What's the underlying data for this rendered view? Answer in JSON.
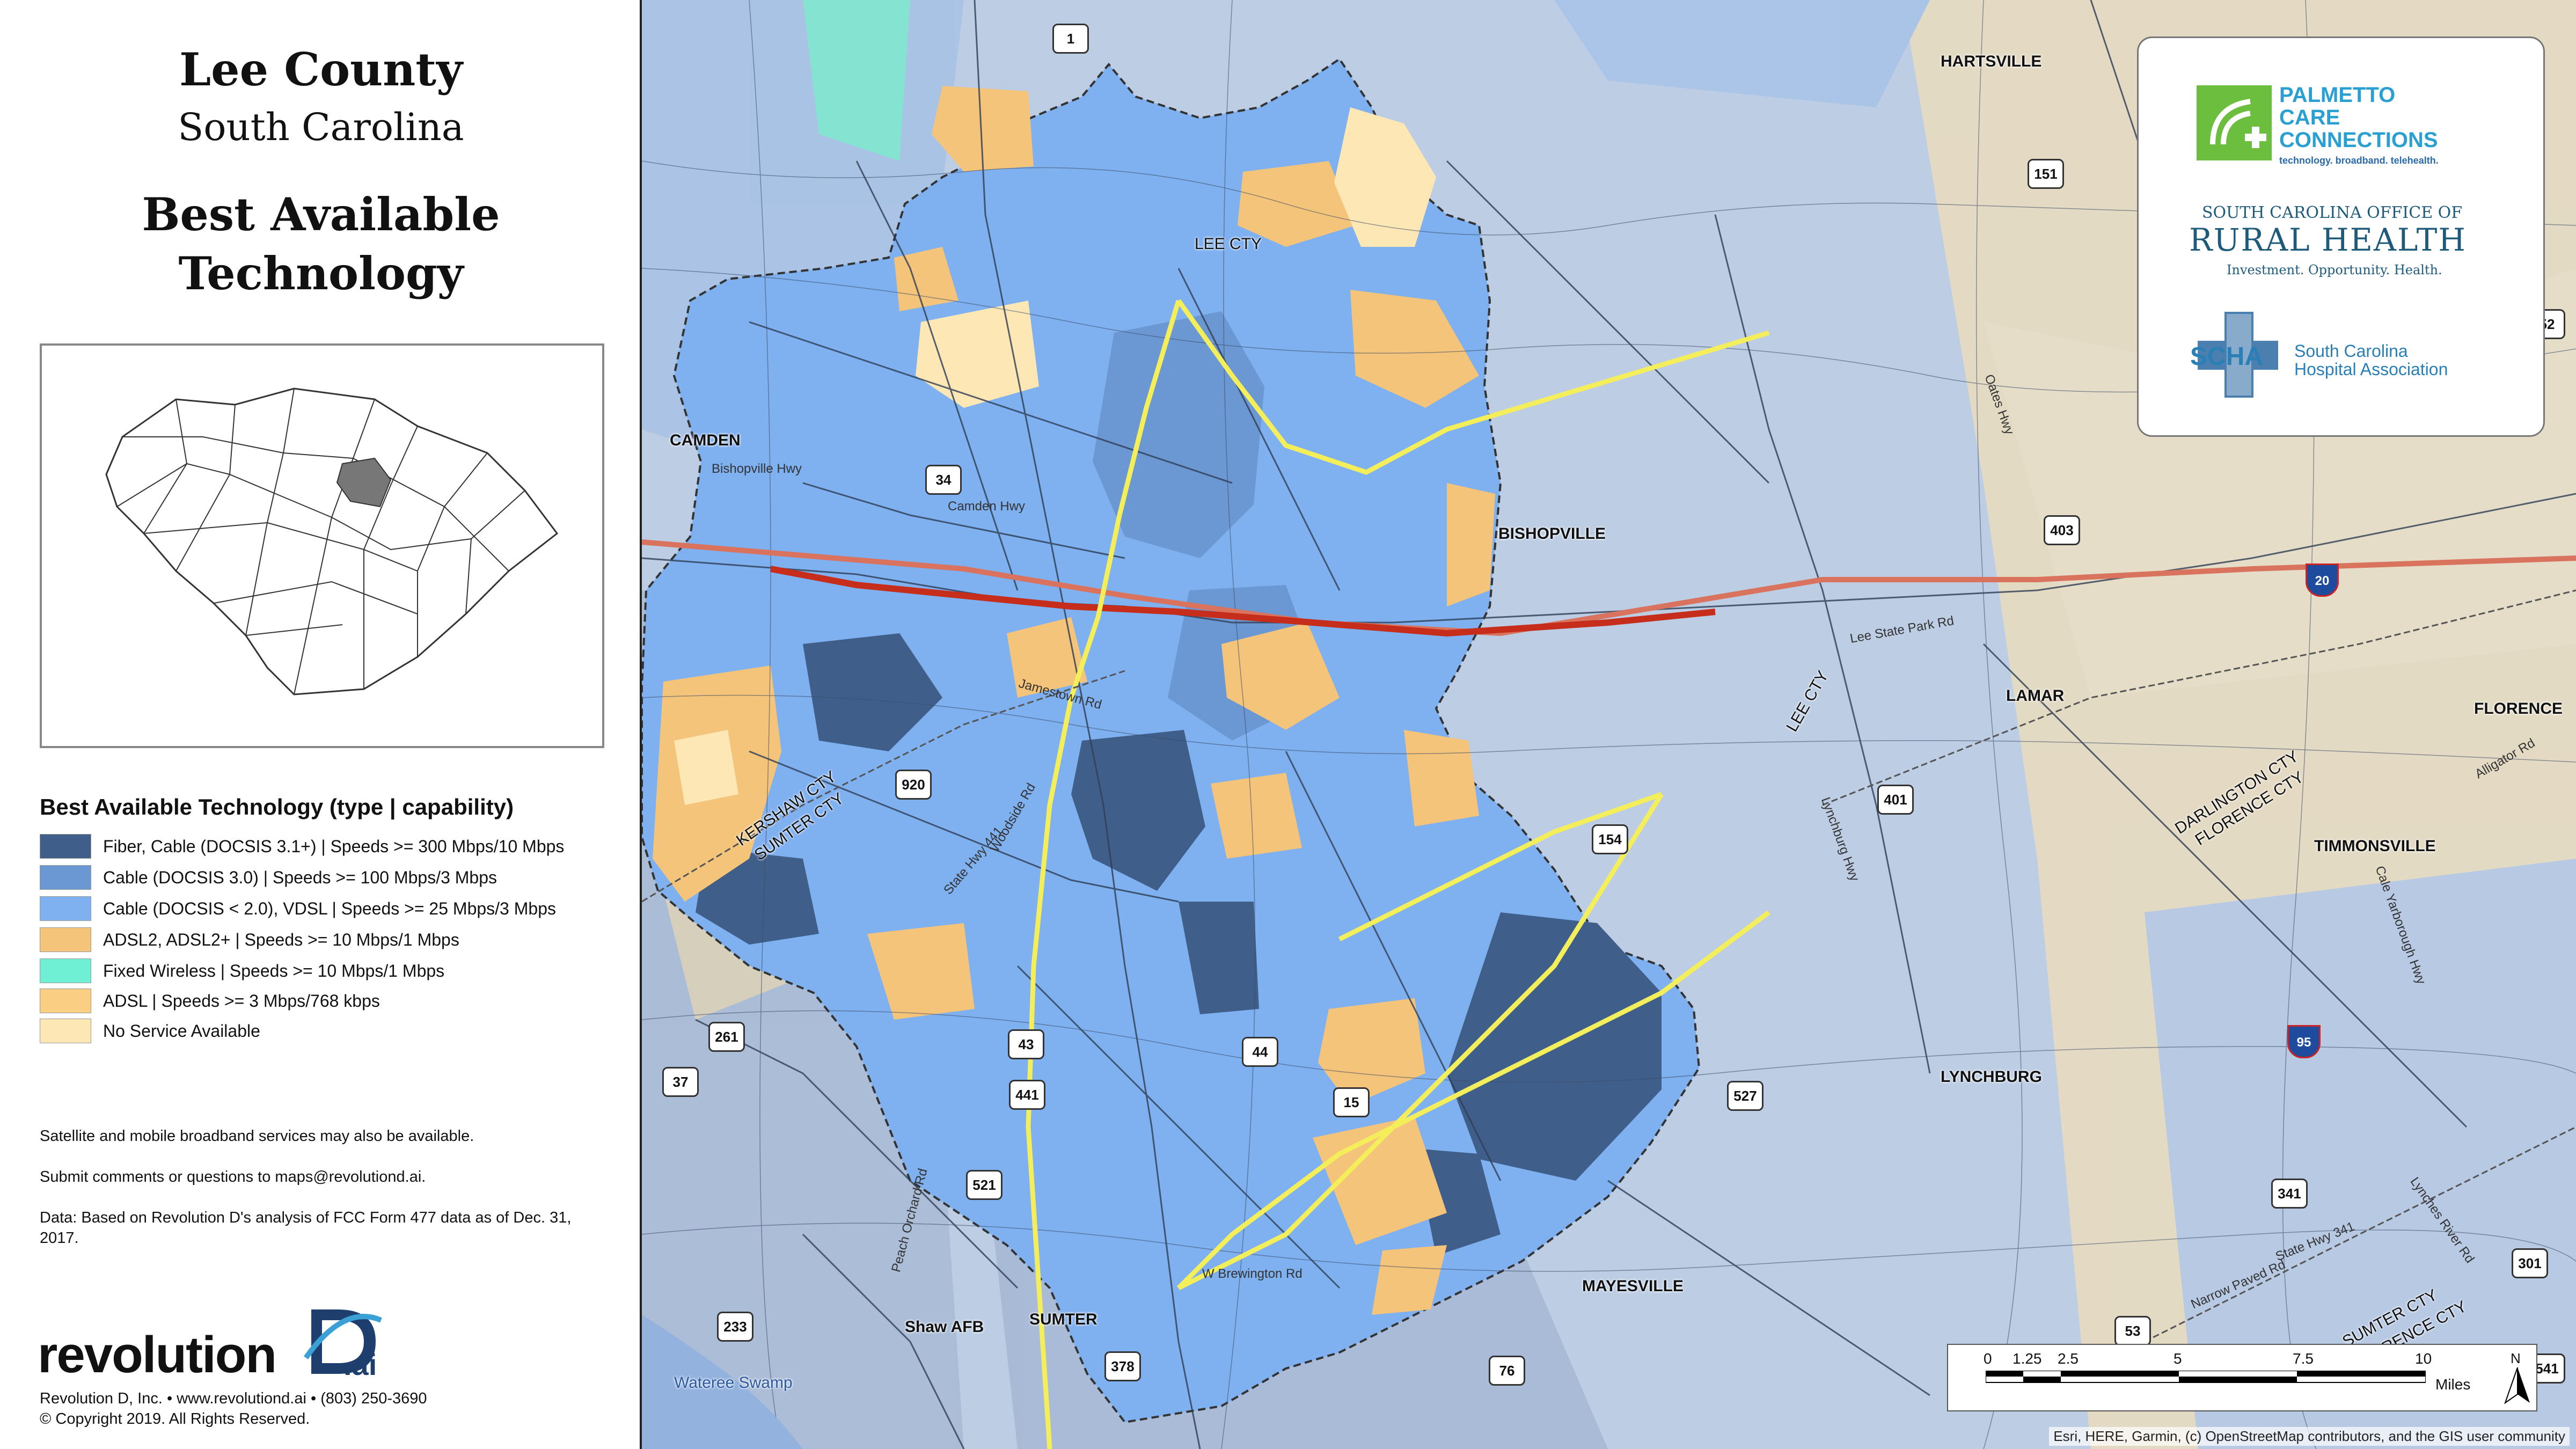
{
  "title": {
    "county": "Lee County",
    "state": "South Carolina",
    "theme_line1": "Best Available",
    "theme_line2": "Technology"
  },
  "legend": {
    "title": "Best Available Technology (type | capability)",
    "items": [
      {
        "label": "Fiber, Cable (DOCSIS 3.1+) | Speeds >= 300 Mbps/10 Mbps",
        "color": "#3f5f8a"
      },
      {
        "label": "Cable (DOCSIS 3.0) | Speeds >= 100 Mbps/3 Mbps",
        "color": "#6b97d2"
      },
      {
        "label": "Cable (DOCSIS < 2.0), VDSL | Speeds >= 25 Mbps/3 Mbps",
        "color": "#7fb0ef"
      },
      {
        "label": "ADSL2, ADSL2+ | Speeds >= 10 Mbps/1 Mbps",
        "color": "#f3c47a"
      },
      {
        "label": "Fixed Wireless | Speeds >= 10 Mbps/1 Mbps",
        "color": "#6ff0d4"
      },
      {
        "label": "ADSL | Speeds >= 3 Mbps/768 kbps",
        "color": "#fbcf83"
      },
      {
        "label": "No Service Available",
        "color": "#fde7b5"
      }
    ]
  },
  "notes": {
    "satellite": "Satellite and mobile broadband services may also be available.",
    "comments": "Submit comments or questions to maps@revolutiond.ai.",
    "data": "Data: Based on Revolution D's analysis of FCC Form 477 data as of Dec. 31, 2017."
  },
  "logo": {
    "word": "revolution",
    "ai": ".ai"
  },
  "footer": {
    "line1": "Revolution D, Inc. • www.revolutiond.ai • (803) 250-3690",
    "line2": "© Copyright 2019. All Rights Reserved."
  },
  "sponsors": {
    "pcc": {
      "line1": "PALMETTO",
      "line2": "CARE",
      "line3": "CONNECTIONS",
      "tm": "™",
      "tagline": "technology. broadband. telehealth."
    },
    "rural_health": {
      "top": "SOUTH CAROLINA OFFICE OF",
      "main": "RURAL HEALTH",
      "sub": "Investment. Opportunity. Health."
    },
    "scha": {
      "abbr": "SCHA",
      "line1": "South Carolina",
      "line2": "Hospital Association"
    }
  },
  "places": {
    "hartsville": "HARTSVILLE",
    "camden": "CAMDEN",
    "bishopville": "BISHOPVILLE",
    "lamar": "LAMAR",
    "florence": "FLORENCE",
    "timmonsville": "TIMMONSVILLE",
    "lynchburg": "LYNCHBURG",
    "mayesville": "MAYESVILLE",
    "sumter": "SUMTER",
    "shaw_afb": "Shaw AFB",
    "wateree_swamp": "Wateree Swamp",
    "lee_cty_north": "LEE CTY",
    "lee_cty_east": "LEE CTY",
    "kershaw_cty": "KERSHAW CTY",
    "sumter_cty": "SUMTER CTY",
    "darlington_cty": "DARLINGTON CTY",
    "florence_cty": "FLORENCE CTY",
    "sumter_cty_se": "SUMTER CTY",
    "florence_cty_se": "FLORENCE CTY"
  },
  "roads": {
    "lee_state_park": "Lee State Park Rd",
    "camden_hwy": "Camden Hwy",
    "bishopville_hwy": "Bishopville Hwy",
    "jamestown_rd": "Jamestown Rd",
    "state_hwy_441": "State Hwy 441",
    "woodside_rd": "Woodside Rd",
    "lynchburg_hwy": "Lynchburg Hwy",
    "state_hwy_341": "State Hwy 341",
    "oates_hwy": "Oates Hwy",
    "w_brewington_rd": "W Brewington Rd",
    "narrow_paved": "Narrow Paved Rd",
    "cale_yarborough": "Cale Yarborough Hwy",
    "alligator_rd": "Alligator Rd",
    "peach_orchard": "Peach Orchard Rd",
    "lynches_river": "Lynches River Rd"
  },
  "shields": {
    "us1": "1",
    "sc151": "151",
    "sc34": "34",
    "sc403": "403",
    "i20": "20",
    "sc920": "920",
    "us401": "401",
    "sc154": "154",
    "sc261": "261",
    "sc43": "43",
    "sc44": "44",
    "sc37": "37",
    "sc441": "441",
    "us15": "15",
    "sc527": "527",
    "i95": "95",
    "sc521": "521",
    "sc341": "341",
    "sc233": "233",
    "us378": "378",
    "sc76": "76",
    "sc53": "53",
    "us52": "52",
    "us301": "301",
    "sc541": "541"
  },
  "scale": {
    "ticks": [
      "0",
      "1.25",
      "2.5",
      "5",
      "7.5",
      "10"
    ],
    "unit": "Miles",
    "north": "N"
  },
  "attribution": "Esri, HERE, Garmin, (c) OpenStreetMap contributors, and the GIS user community"
}
